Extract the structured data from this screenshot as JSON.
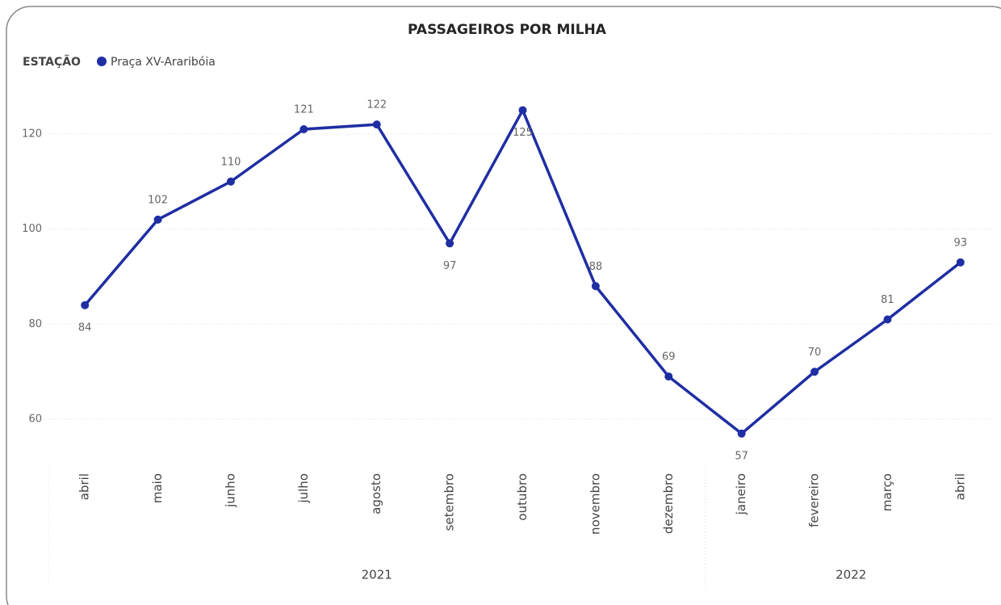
{
  "chart_data": {
    "type": "line",
    "title": "PASSAGEIROS POR MILHA",
    "legend_title": "ESTAÇÃO",
    "categories": [
      "abril",
      "maio",
      "junho",
      "julho",
      "agosto",
      "setembro",
      "outubro",
      "novembro",
      "dezembro",
      "janeiro",
      "fevereiro",
      "março",
      "abril"
    ],
    "x_groups": [
      {
        "label": "2021",
        "count": 9
      },
      {
        "label": "2022",
        "count": 4
      }
    ],
    "series": [
      {
        "name": "Praça XV-Araribóia",
        "color": "#1f2ea3",
        "values": [
          84,
          102,
          110,
          121,
          122,
          97,
          125,
          88,
          69,
          57,
          70,
          81,
          93
        ]
      }
    ],
    "ylim": [
      50,
      130
    ],
    "yticks": [
      60,
      80,
      100,
      120
    ],
    "grid": true
  }
}
